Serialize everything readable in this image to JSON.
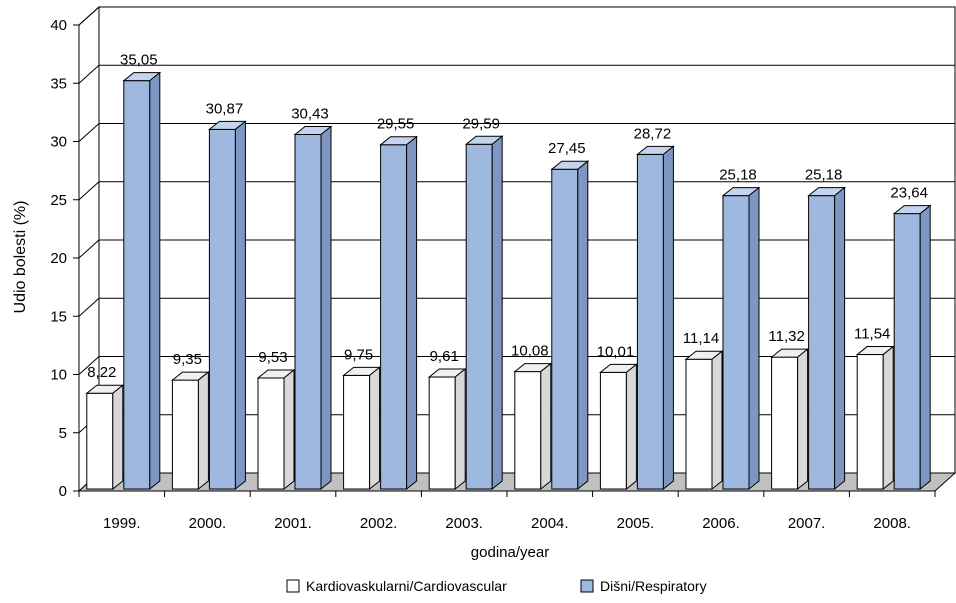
{
  "chart_data": {
    "type": "bar",
    "title": "",
    "xlabel": "godina/year",
    "ylabel": "Udio bolesti (%)",
    "ylim": [
      0,
      40
    ],
    "yticks": [
      "0",
      "5",
      "10",
      "15",
      "20",
      "25",
      "30",
      "35",
      "40"
    ],
    "categories": [
      "1999.",
      "2000.",
      "2001.",
      "2002.",
      "2003.",
      "2004.",
      "2005.",
      "2006.",
      "2007.",
      "2008."
    ],
    "grid": true,
    "legend_position": "bottom",
    "series": [
      {
        "name": "Kardiovaskularni/Cardiovascular",
        "color": "#ffffff",
        "values": [
          8.22,
          9.35,
          9.53,
          9.75,
          9.61,
          10.08,
          10.01,
          11.14,
          11.32,
          11.54
        ],
        "labels": [
          "8,22",
          "9,35",
          "9,53",
          "9,75",
          "9,61",
          "10,08",
          "10,01",
          "11,14",
          "11,32",
          "11,54"
        ]
      },
      {
        "name": "Dišni/Respiratory",
        "color": "#9fb8e0",
        "values": [
          35.05,
          30.87,
          30.43,
          29.55,
          29.59,
          27.45,
          28.72,
          25.18,
          25.18,
          23.64
        ],
        "labels": [
          "35,05",
          "30,87",
          "30,43",
          "29,55",
          "29,59",
          "27,45",
          "28,72",
          "25,18",
          "25,18",
          "23,64"
        ]
      }
    ]
  }
}
